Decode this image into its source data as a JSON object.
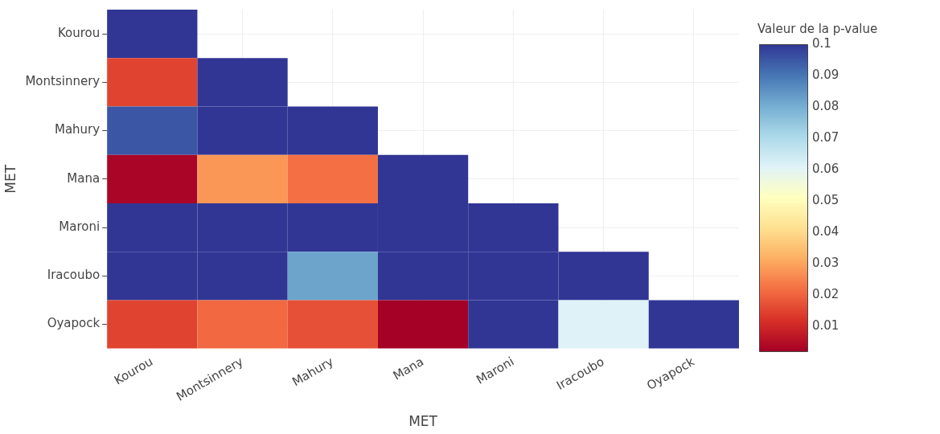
{
  "chart_data": {
    "type": "heatmap",
    "xlabel": "MET",
    "ylabel": "MET",
    "clabel": "Valeur de la p-value",
    "categories": [
      "Kourou",
      "Montsinnery",
      "Mahury",
      "Mana",
      "Maroni",
      "Iracoubo",
      "Oyapock"
    ],
    "y_categories": [
      "Kourou",
      "Montsinnery",
      "Mahury",
      "Mana",
      "Maroni",
      "Iracoubo",
      "Oyapock"
    ],
    "cells": [
      [
        0.1,
        null,
        null,
        null,
        null,
        null,
        null
      ],
      [
        0.015,
        0.1,
        null,
        null,
        null,
        null,
        null
      ],
      [
        0.095,
        0.1,
        0.1,
        null,
        null,
        null,
        null
      ],
      [
        0.003,
        0.028,
        0.022,
        0.1,
        null,
        null,
        null
      ],
      [
        0.1,
        0.1,
        0.1,
        0.1,
        0.1,
        null,
        null
      ],
      [
        0.1,
        0.1,
        0.082,
        0.1,
        0.1,
        0.1,
        null
      ],
      [
        0.015,
        0.021,
        0.017,
        0.002,
        0.1,
        0.061,
        0.1
      ]
    ],
    "clim": [
      0.002,
      0.1
    ],
    "cticks": [
      0.01,
      0.02,
      0.03,
      0.04,
      0.05,
      0.06,
      0.07,
      0.08,
      0.09,
      0.1
    ],
    "grid": true
  }
}
